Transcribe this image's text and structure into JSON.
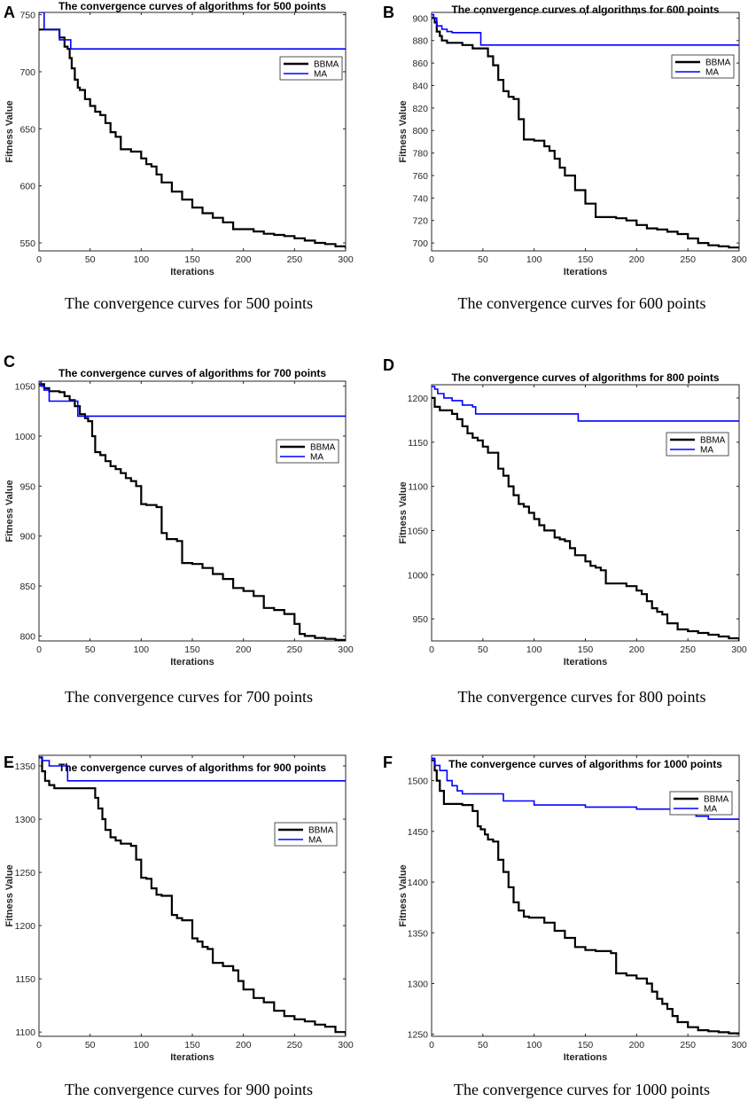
{
  "figure": {
    "description_captions": true
  },
  "colors": {
    "BBMA": "#000000",
    "MA": "#0000ff",
    "axes": "#262626"
  },
  "chart_data": [
    {
      "panel": "A",
      "type": "line",
      "title": "The convergence curves of algorithms for 500 points",
      "caption": "The convergence curves for 500 points",
      "xlabel": "Iterations",
      "ylabel": "Fitness Value",
      "xlim": [
        0,
        300
      ],
      "ylim": [
        543,
        752
      ],
      "xticks": [
        0,
        50,
        100,
        150,
        200,
        250,
        300
      ],
      "yticks": [
        550,
        600,
        650,
        700,
        750
      ],
      "legend_position": "top-right",
      "series": [
        {
          "name": "BBMA",
          "x": [
            0,
            5,
            10,
            15,
            20,
            25,
            28,
            30,
            32,
            35,
            38,
            40,
            45,
            50,
            55,
            60,
            65,
            70,
            75,
            80,
            90,
            100,
            105,
            110,
            115,
            120,
            130,
            140,
            150,
            160,
            170,
            180,
            190,
            200,
            210,
            220,
            230,
            240,
            250,
            260,
            270,
            280,
            290,
            300
          ],
          "y": [
            737,
            737,
            737,
            737,
            730,
            722,
            720,
            712,
            703,
            693,
            686,
            684,
            676,
            670,
            665,
            662,
            655,
            647,
            643,
            632,
            630,
            624,
            619,
            617,
            610,
            603,
            595,
            588,
            581,
            576,
            572,
            568,
            562,
            562,
            560,
            558,
            557,
            556,
            554,
            552,
            550,
            549,
            547,
            545
          ]
        },
        {
          "name": "MA",
          "x": [
            0,
            3,
            5,
            15,
            20,
            30,
            31,
            300
          ],
          "y": [
            752,
            752,
            737,
            737,
            728,
            728,
            720,
            720
          ]
        }
      ]
    },
    {
      "panel": "B",
      "type": "line",
      "title": "The convergence curves of algorithms for 600 points",
      "caption": "The convergence curves for 600 points",
      "xlabel": "Iterations",
      "ylabel": "Fitness Value",
      "xlim": [
        0,
        300
      ],
      "ylim": [
        693,
        905
      ],
      "xticks": [
        0,
        50,
        100,
        150,
        200,
        250,
        300
      ],
      "yticks": [
        700,
        720,
        740,
        760,
        780,
        800,
        820,
        840,
        860,
        880,
        900
      ],
      "legend_position": "top-right",
      "series": [
        {
          "name": "BBMA",
          "x": [
            0,
            3,
            5,
            8,
            10,
            15,
            20,
            30,
            40,
            50,
            55,
            60,
            65,
            70,
            75,
            80,
            85,
            90,
            95,
            100,
            110,
            115,
            120,
            125,
            130,
            140,
            150,
            160,
            170,
            180,
            190,
            200,
            210,
            220,
            230,
            240,
            250,
            260,
            270,
            280,
            290,
            300
          ],
          "y": [
            900,
            896,
            888,
            884,
            880,
            878,
            878,
            876,
            873,
            873,
            866,
            858,
            845,
            835,
            830,
            828,
            810,
            792,
            792,
            791,
            786,
            782,
            775,
            767,
            760,
            747,
            735,
            723,
            723,
            722,
            720,
            716,
            713,
            712,
            710,
            708,
            704,
            700,
            698,
            697,
            696,
            695
          ]
        },
        {
          "name": "MA",
          "x": [
            0,
            2,
            5,
            10,
            15,
            20,
            45,
            48,
            300
          ],
          "y": [
            903,
            900,
            893,
            890,
            888,
            887,
            887,
            876,
            876
          ]
        }
      ]
    },
    {
      "panel": "C",
      "type": "line",
      "title": "The convergence curves of algorithms for 700 points",
      "caption": "The convergence curves for 700 points",
      "xlabel": "Iterations",
      "ylabel": "Fitness Value",
      "xlim": [
        0,
        300
      ],
      "ylim": [
        795,
        1055
      ],
      "xticks": [
        0,
        50,
        100,
        150,
        200,
        250,
        300
      ],
      "yticks": [
        800,
        850,
        900,
        950,
        1000,
        1050
      ],
      "legend_position": "middle-right",
      "series": [
        {
          "name": "BBMA",
          "x": [
            0,
            5,
            10,
            20,
            25,
            30,
            35,
            40,
            45,
            48,
            52,
            55,
            60,
            65,
            70,
            75,
            80,
            85,
            90,
            95,
            100,
            105,
            110,
            115,
            120,
            125,
            130,
            135,
            140,
            150,
            160,
            170,
            180,
            190,
            200,
            210,
            220,
            230,
            240,
            250,
            255,
            260,
            270,
            280,
            290,
            300
          ],
          "y": [
            1052,
            1048,
            1045,
            1044,
            1040,
            1036,
            1030,
            1022,
            1018,
            1015,
            1000,
            984,
            981,
            975,
            970,
            967,
            963,
            958,
            955,
            950,
            932,
            931,
            931,
            929,
            903,
            897,
            897,
            895,
            873,
            872,
            868,
            862,
            857,
            848,
            845,
            840,
            828,
            826,
            822,
            812,
            802,
            800,
            798,
            797,
            796,
            795
          ]
        },
        {
          "name": "MA",
          "x": [
            0,
            2,
            5,
            10,
            35,
            38,
            300
          ],
          "y": [
            1055,
            1050,
            1046,
            1035,
            1035,
            1020,
            1020
          ]
        }
      ]
    },
    {
      "panel": "D",
      "type": "line",
      "title": "The convergence curves of algorithms for 800 points",
      "caption": "The convergence curves for 800 points",
      "xlabel": "Iterations",
      "ylabel": "Fitness Value",
      "xlim": [
        0,
        300
      ],
      "ylim": [
        925,
        1215
      ],
      "xticks": [
        0,
        50,
        100,
        150,
        200,
        250,
        300
      ],
      "yticks": [
        950,
        1000,
        1050,
        1100,
        1150,
        1200
      ],
      "legend_position": "top-right",
      "series": [
        {
          "name": "BBMA",
          "x": [
            0,
            3,
            8,
            15,
            20,
            25,
            30,
            35,
            40,
            45,
            50,
            55,
            60,
            65,
            70,
            75,
            80,
            85,
            90,
            95,
            100,
            105,
            110,
            120,
            125,
            130,
            135,
            140,
            150,
            155,
            160,
            165,
            170,
            180,
            190,
            200,
            205,
            210,
            215,
            220,
            225,
            230,
            240,
            250,
            260,
            270,
            280,
            290,
            300
          ],
          "y": [
            1200,
            1190,
            1186,
            1186,
            1182,
            1176,
            1168,
            1160,
            1155,
            1152,
            1145,
            1138,
            1138,
            1120,
            1112,
            1100,
            1090,
            1080,
            1077,
            1070,
            1063,
            1056,
            1050,
            1042,
            1040,
            1038,
            1030,
            1022,
            1015,
            1010,
            1008,
            1005,
            990,
            990,
            987,
            982,
            978,
            970,
            962,
            958,
            955,
            945,
            938,
            936,
            934,
            932,
            930,
            928,
            925
          ]
        },
        {
          "name": "MA",
          "x": [
            0,
            3,
            6,
            12,
            20,
            30,
            40,
            43,
            140,
            143,
            300
          ],
          "y": [
            1213,
            1210,
            1205,
            1200,
            1197,
            1192,
            1190,
            1182,
            1182,
            1174,
            1174
          ]
        }
      ]
    },
    {
      "panel": "E",
      "type": "line",
      "title": "The convergence curves of algorithms for 900 points",
      "caption": "The convergence curves for 900 points",
      "xlabel": "Iterations",
      "ylabel": "Fitness Value",
      "xlim": [
        0,
        300
      ],
      "ylim": [
        1096,
        1360
      ],
      "xticks": [
        0,
        50,
        100,
        150,
        200,
        250,
        300
      ],
      "yticks": [
        1100,
        1150,
        1200,
        1250,
        1300,
        1350
      ],
      "legend_position": "top-right",
      "series": [
        {
          "name": "BBMA",
          "x": [
            0,
            3,
            6,
            10,
            15,
            20,
            50,
            55,
            58,
            62,
            65,
            70,
            75,
            80,
            90,
            95,
            100,
            105,
            110,
            115,
            120,
            130,
            135,
            140,
            150,
            155,
            160,
            165,
            170,
            180,
            190,
            195,
            200,
            210,
            220,
            230,
            240,
            250,
            260,
            270,
            280,
            290,
            300
          ],
          "y": [
            1358,
            1345,
            1336,
            1332,
            1329,
            1329,
            1329,
            1320,
            1310,
            1300,
            1290,
            1283,
            1280,
            1277,
            1275,
            1262,
            1245,
            1244,
            1235,
            1229,
            1228,
            1210,
            1207,
            1205,
            1188,
            1185,
            1180,
            1178,
            1165,
            1162,
            1158,
            1148,
            1140,
            1132,
            1128,
            1120,
            1115,
            1112,
            1110,
            1107,
            1105,
            1100,
            1097
          ]
        },
        {
          "name": "MA",
          "x": [
            0,
            3,
            10,
            25,
            28,
            300
          ],
          "y": [
            1358,
            1355,
            1350,
            1350,
            1336,
            1336
          ]
        }
      ]
    },
    {
      "panel": "F",
      "type": "line",
      "title": "The convergence curves of algorithms for 1000 points",
      "caption": "The convergence curves for 1000 points",
      "xlabel": "Iterations",
      "ylabel": "Fitness Value",
      "xlim": [
        0,
        300
      ],
      "ylim": [
        1248,
        1525
      ],
      "xticks": [
        0,
        50,
        100,
        150,
        200,
        250,
        300
      ],
      "yticks": [
        1250,
        1300,
        1350,
        1400,
        1450,
        1500
      ],
      "legend_position": "top-right",
      "series": [
        {
          "name": "BBMA",
          "x": [
            0,
            3,
            5,
            8,
            12,
            18,
            20,
            30,
            40,
            45,
            48,
            52,
            55,
            60,
            65,
            70,
            75,
            80,
            85,
            90,
            95,
            110,
            120,
            130,
            140,
            150,
            160,
            175,
            180,
            190,
            200,
            210,
            215,
            220,
            225,
            230,
            235,
            240,
            250,
            260,
            270,
            280,
            290,
            300
          ],
          "y": [
            1520,
            1510,
            1500,
            1490,
            1477,
            1477,
            1477,
            1476,
            1470,
            1455,
            1452,
            1447,
            1442,
            1440,
            1422,
            1410,
            1395,
            1380,
            1372,
            1366,
            1365,
            1360,
            1352,
            1345,
            1336,
            1333,
            1332,
            1330,
            1310,
            1308,
            1305,
            1300,
            1292,
            1285,
            1280,
            1275,
            1268,
            1262,
            1257,
            1254,
            1253,
            1252,
            1251,
            1250
          ]
        },
        {
          "name": "MA",
          "x": [
            0,
            3,
            8,
            15,
            20,
            25,
            30,
            60,
            70,
            100,
            150,
            200,
            250,
            258,
            270,
            300
          ],
          "y": [
            1522,
            1515,
            1510,
            1500,
            1495,
            1490,
            1487,
            1487,
            1480,
            1476,
            1474,
            1472,
            1470,
            1465,
            1462,
            1462
          ]
        }
      ]
    }
  ]
}
